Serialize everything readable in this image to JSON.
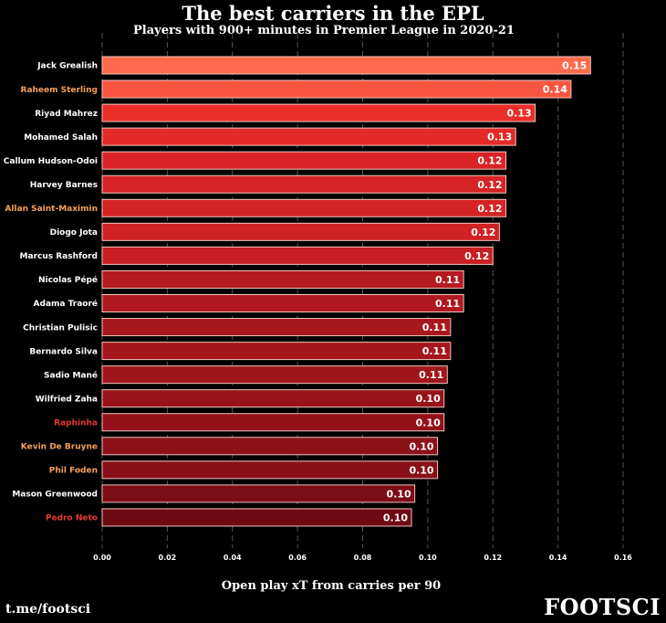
{
  "chart_data": {
    "type": "bar",
    "orientation": "horizontal",
    "title": "The best carriers in the EPL",
    "subtitle": "Players with 900+ minutes in Premier League in 2020-21",
    "xlabel": "Open play xT from carries per 90",
    "ylabel": "",
    "xlim": [
      0,
      0.16
    ],
    "xticks": [
      "0.00",
      "0.02",
      "0.04",
      "0.06",
      "0.08",
      "0.10",
      "0.12",
      "0.14",
      "0.16"
    ],
    "xtick_values": [
      0,
      0.02,
      0.04,
      0.06,
      0.08,
      0.1,
      0.12,
      0.14,
      0.16
    ],
    "grid": "vertical dashed",
    "categories": [
      "Jack Grealish",
      "Raheem Sterling",
      "Riyad Mahrez",
      "Mohamed Salah",
      "Callum Hudson-Odoi",
      "Harvey Barnes",
      "Allan Saint-Maximin",
      "Diogo Jota",
      "Marcus Rashford",
      "Nicolas Pépé",
      "Adama Traoré",
      "Christian Pulisic",
      "Bernardo Silva",
      "Sadio Mané",
      "Wilfried Zaha",
      "Raphinha",
      "Kevin De Bruyne",
      "Phil Foden",
      "Mason Greenwood",
      "Pedro Neto"
    ],
    "values": [
      0.15,
      0.144,
      0.133,
      0.127,
      0.124,
      0.124,
      0.124,
      0.122,
      0.12,
      0.111,
      0.111,
      0.107,
      0.107,
      0.106,
      0.105,
      0.105,
      0.103,
      0.103,
      0.096,
      0.095
    ],
    "value_labels": [
      "0.15",
      "0.14",
      "0.13",
      "0.13",
      "0.12",
      "0.12",
      "0.12",
      "0.12",
      "0.12",
      "0.11",
      "0.11",
      "0.11",
      "0.11",
      "0.11",
      "0.10",
      "0.10",
      "0.10",
      "0.10",
      "0.10",
      "0.10"
    ],
    "label_colors": [
      "#ffffff",
      "#f5a05a",
      "#ffffff",
      "#ffffff",
      "#ffffff",
      "#ffffff",
      "#f5a05a",
      "#ffffff",
      "#ffffff",
      "#ffffff",
      "#ffffff",
      "#ffffff",
      "#ffffff",
      "#ffffff",
      "#ffffff",
      "#e8392d",
      "#f5a05a",
      "#f5a05a",
      "#ffffff",
      "#e8392d"
    ],
    "bar_colors": [
      "#ff6a4d",
      "#fb5540",
      "#ea2e2a",
      "#e42a28",
      "#d92326",
      "#d62325",
      "#d42325",
      "#d02224",
      "#c81f22",
      "#b51a1f",
      "#b01a1f",
      "#a8171d",
      "#a4161c",
      "#a0151b",
      "#97131a",
      "#93121a",
      "#8c1119",
      "#880f18",
      "#7c0c16",
      "#6e0a14"
    ]
  },
  "footer": {
    "handle": "t.me/footsci",
    "brand": "FOOTSCI"
  }
}
